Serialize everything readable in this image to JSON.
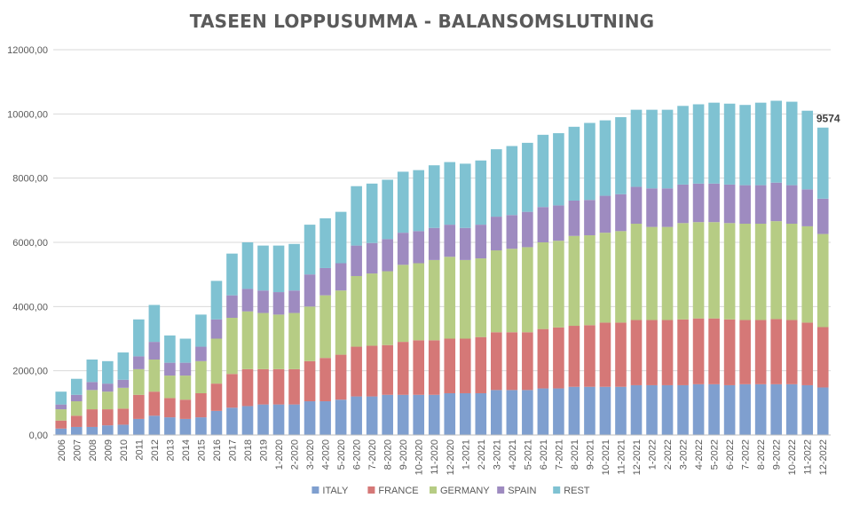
{
  "chart_data": {
    "type": "bar",
    "stacked": true,
    "title": "TASEEN LOPPUSUMMA - BALANSOMSLUTNING",
    "xlabel": "",
    "ylabel": "",
    "ylim": [
      0,
      12000
    ],
    "yticks": [
      "0,00",
      "2000,00",
      "4000,00",
      "6000,00",
      "8000,00",
      "10000,00",
      "12000,00"
    ],
    "grid": true,
    "legend_position": "bottom",
    "annotation": {
      "category": "12-2022",
      "text": "9574"
    },
    "categories": [
      "2006",
      "2007",
      "2008",
      "2009",
      "2010",
      "2011",
      "2012",
      "2013",
      "2014",
      "2015",
      "2016",
      "2017",
      "2018",
      "2019",
      "1-2020",
      "2-2020",
      "3-2020",
      "4-2020",
      "5-2020",
      "6-2020",
      "7-2020",
      "8-2020",
      "9-2020",
      "10-2020",
      "11-2020",
      "12-2020",
      "1-2021",
      "2-2021",
      "3-2021",
      "4-2021",
      "5-2021",
      "6-2021",
      "7-2021",
      "8-2021",
      "9-2021",
      "10-2021",
      "11-2021",
      "12-2021",
      "1-2022",
      "2-2022",
      "3-2022",
      "4-2022",
      "5-2022",
      "6-2022",
      "7-2022",
      "8-2022",
      "9-2022",
      "10-2022",
      "11-2022",
      "12-2022"
    ],
    "series": [
      {
        "name": "ITALY",
        "color": "#7f9fcf",
        "values": [
          200,
          250,
          250,
          300,
          320,
          500,
          600,
          550,
          500,
          550,
          750,
          850,
          900,
          950,
          950,
          950,
          1050,
          1050,
          1100,
          1200,
          1200,
          1250,
          1250,
          1250,
          1250,
          1300,
          1300,
          1300,
          1400,
          1400,
          1400,
          1450,
          1450,
          1500,
          1500,
          1500,
          1500,
          1550,
          1550,
          1550,
          1550,
          1580,
          1580,
          1550,
          1580,
          1580,
          1580,
          1580,
          1550,
          1480
        ]
      },
      {
        "name": "FRANCE",
        "color": "#d57877",
        "values": [
          250,
          350,
          550,
          500,
          500,
          750,
          750,
          600,
          600,
          750,
          850,
          1050,
          1150,
          1100,
          1100,
          1100,
          1250,
          1350,
          1400,
          1550,
          1580,
          1550,
          1650,
          1700,
          1700,
          1700,
          1700,
          1750,
          1800,
          1800,
          1800,
          1850,
          1900,
          1900,
          1920,
          2000,
          2000,
          2030,
          2030,
          2030,
          2050,
          2050,
          2050,
          2050,
          2000,
          2000,
          2030,
          2000,
          1950,
          1880
        ]
      },
      {
        "name": "GERMANY",
        "color": "#b6cc84",
        "values": [
          350,
          450,
          600,
          550,
          650,
          800,
          1000,
          700,
          750,
          1000,
          1400,
          1750,
          1800,
          1750,
          1700,
          1750,
          1700,
          1950,
          2000,
          2200,
          2250,
          2300,
          2400,
          2400,
          2500,
          2550,
          2450,
          2450,
          2550,
          2600,
          2650,
          2700,
          2700,
          2800,
          2800,
          2800,
          2850,
          3000,
          2900,
          2900,
          3000,
          3000,
          3000,
          3000,
          3000,
          3000,
          3050,
          3000,
          3000,
          2900
        ]
      },
      {
        "name": "SPAIN",
        "color": "#9e8bc0",
        "values": [
          150,
          200,
          250,
          250,
          250,
          400,
          550,
          400,
          400,
          450,
          600,
          700,
          700,
          700,
          700,
          700,
          1000,
          850,
          850,
          950,
          950,
          1000,
          1000,
          1000,
          1000,
          1000,
          1000,
          1050,
          1050,
          1050,
          1100,
          1100,
          1100,
          1100,
          1100,
          1150,
          1150,
          1150,
          1200,
          1200,
          1200,
          1200,
          1200,
          1200,
          1200,
          1200,
          1200,
          1200,
          1150,
          1100
        ]
      },
      {
        "name": "REST",
        "color": "#7fc2d2",
        "values": [
          400,
          500,
          700,
          700,
          850,
          1150,
          1150,
          850,
          750,
          1000,
          1200,
          1300,
          1450,
          1400,
          1450,
          1450,
          1550,
          1550,
          1600,
          1850,
          1850,
          1850,
          1900,
          1900,
          1950,
          1950,
          2000,
          2000,
          2100,
          2150,
          2150,
          2250,
          2250,
          2300,
          2400,
          2350,
          2400,
          2400,
          2450,
          2450,
          2450,
          2470,
          2520,
          2520,
          2500,
          2570,
          2550,
          2600,
          2450,
          2214
        ]
      }
    ]
  }
}
